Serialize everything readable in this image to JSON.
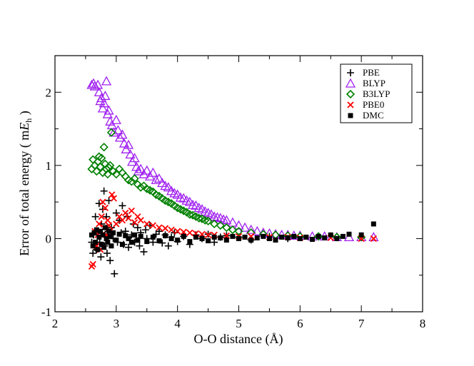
{
  "chart_data": {
    "type": "scatter",
    "xlabel": "O-O distance (Å)",
    "ylabel_text": "Error of total energy ( m",
    "ylabel_italic": "E",
    "ylabel_sub": "h",
    "ylabel_close": " )",
    "xlim": [
      2,
      8
    ],
    "ylim": [
      -1,
      2.5
    ],
    "xticks": [
      2,
      3,
      4,
      5,
      6,
      7,
      8
    ],
    "yticks": [
      -1,
      0,
      1,
      2
    ],
    "grid": false,
    "legend_position": "top-right",
    "series": [
      {
        "name": "PBE",
        "marker": "plus",
        "color": "#000000",
        "points": [
          [
            2.6,
            -0.05
          ],
          [
            2.62,
            -0.2
          ],
          [
            2.63,
            0.05
          ],
          [
            2.65,
            -0.12
          ],
          [
            2.66,
            0.3
          ],
          [
            2.68,
            -0.15
          ],
          [
            2.7,
            0.1
          ],
          [
            2.72,
            0.48
          ],
          [
            2.73,
            -0.05
          ],
          [
            2.75,
            -0.25
          ],
          [
            2.76,
            0.2
          ],
          [
            2.78,
            0.4
          ],
          [
            2.8,
            0.65
          ],
          [
            2.81,
            -0.1
          ],
          [
            2.82,
            0.05
          ],
          [
            2.84,
            0.3
          ],
          [
            2.85,
            -0.2
          ],
          [
            2.87,
            0.1
          ],
          [
            2.88,
            0.52
          ],
          [
            2.9,
            -0.3
          ],
          [
            2.92,
            0.15
          ],
          [
            2.95,
            0.0
          ],
          [
            2.97,
            -0.48
          ],
          [
            3.0,
            0.35
          ],
          [
            3.02,
            -0.05
          ],
          [
            3.05,
            0.25
          ],
          [
            3.08,
            0.08
          ],
          [
            3.1,
            0.45
          ],
          [
            3.12,
            -0.08
          ],
          [
            3.15,
            0.1
          ],
          [
            3.18,
            0.3
          ],
          [
            3.2,
            -0.12
          ],
          [
            3.25,
            0.05
          ],
          [
            3.28,
            0.2
          ],
          [
            3.3,
            -0.05
          ],
          [
            3.35,
            0.15
          ],
          [
            3.38,
            -0.1
          ],
          [
            3.4,
            0.08
          ],
          [
            3.45,
            -0.18
          ],
          [
            3.48,
            0.12
          ],
          [
            3.5,
            0.0
          ],
          [
            3.55,
            0.18
          ],
          [
            3.6,
            -0.05
          ],
          [
            3.65,
            0.06
          ],
          [
            3.7,
            0.1
          ],
          [
            3.75,
            -0.06
          ],
          [
            3.8,
            0.05
          ],
          [
            3.85,
            -0.1
          ],
          [
            3.9,
            0.02
          ],
          [
            3.95,
            0.08
          ],
          [
            4.0,
            -0.04
          ],
          [
            4.1,
            0.03
          ],
          [
            4.2,
            -0.08
          ],
          [
            4.3,
            0.05
          ],
          [
            4.4,
            0.0
          ],
          [
            4.5,
            0.06
          ],
          [
            4.6,
            -0.05
          ],
          [
            4.7,
            0.02
          ],
          [
            4.8,
            0.04
          ],
          [
            5.0,
            0.02
          ],
          [
            5.2,
            -0.02
          ],
          [
            5.5,
            0.03
          ],
          [
            5.8,
            0.0
          ]
        ]
      },
      {
        "name": "BLYP",
        "marker": "triangle",
        "color": "#a020f0",
        "points": [
          [
            2.6,
            2.1
          ],
          [
            2.63,
            2.12
          ],
          [
            2.65,
            2.08
          ],
          [
            2.7,
            2.1
          ],
          [
            2.72,
            2.0
          ],
          [
            2.74,
            1.88
          ],
          [
            2.76,
            1.92
          ],
          [
            2.78,
            1.78
          ],
          [
            2.8,
            1.85
          ],
          [
            2.82,
            1.95
          ],
          [
            2.84,
            2.15
          ],
          [
            2.86,
            1.7
          ],
          [
            2.88,
            1.75
          ],
          [
            2.9,
            1.6
          ],
          [
            2.93,
            1.55
          ],
          [
            2.96,
            1.45
          ],
          [
            3.0,
            1.62
          ],
          [
            3.03,
            1.48
          ],
          [
            3.06,
            1.38
          ],
          [
            3.1,
            1.42
          ],
          [
            3.13,
            1.3
          ],
          [
            3.16,
            1.22
          ],
          [
            3.2,
            1.28
          ],
          [
            3.23,
            1.15
          ],
          [
            3.26,
            1.05
          ],
          [
            3.3,
            1.1
          ],
          [
            3.33,
            0.98
          ],
          [
            3.36,
            0.92
          ],
          [
            3.4,
            0.95
          ],
          [
            3.45,
            0.88
          ],
          [
            3.5,
            0.93
          ],
          [
            3.55,
            0.85
          ],
          [
            3.6,
            0.9
          ],
          [
            3.65,
            0.8
          ],
          [
            3.7,
            0.82
          ],
          [
            3.75,
            0.76
          ],
          [
            3.8,
            0.72
          ],
          [
            3.85,
            0.7
          ],
          [
            3.9,
            0.65
          ],
          [
            3.95,
            0.62
          ],
          [
            4.0,
            0.6
          ],
          [
            4.05,
            0.56
          ],
          [
            4.1,
            0.55
          ],
          [
            4.15,
            0.52
          ],
          [
            4.2,
            0.5
          ],
          [
            4.25,
            0.46
          ],
          [
            4.3,
            0.45
          ],
          [
            4.35,
            0.42
          ],
          [
            4.4,
            0.4
          ],
          [
            4.45,
            0.37
          ],
          [
            4.5,
            0.35
          ],
          [
            4.55,
            0.33
          ],
          [
            4.6,
            0.3
          ],
          [
            4.65,
            0.29
          ],
          [
            4.7,
            0.28
          ],
          [
            4.75,
            0.26
          ],
          [
            4.8,
            0.25
          ],
          [
            4.9,
            0.22
          ],
          [
            5.0,
            0.18
          ],
          [
            5.1,
            0.15
          ],
          [
            5.2,
            0.12
          ],
          [
            5.3,
            0.1
          ],
          [
            5.4,
            0.08
          ],
          [
            5.5,
            0.07
          ],
          [
            5.6,
            0.06
          ],
          [
            5.7,
            0.05
          ],
          [
            5.8,
            0.05
          ],
          [
            5.9,
            0.04
          ],
          [
            6.0,
            0.04
          ],
          [
            6.2,
            0.03
          ],
          [
            6.4,
            0.03
          ],
          [
            6.6,
            0.02
          ],
          [
            6.8,
            0.02
          ],
          [
            7.0,
            0.02
          ],
          [
            7.2,
            0.02
          ]
        ]
      },
      {
        "name": "B3LYP",
        "marker": "diamond",
        "color": "#008000",
        "points": [
          [
            2.6,
            0.95
          ],
          [
            2.62,
            1.08
          ],
          [
            2.65,
            1.0
          ],
          [
            2.68,
            0.92
          ],
          [
            2.7,
            1.05
          ],
          [
            2.72,
            1.12
          ],
          [
            2.74,
            0.98
          ],
          [
            2.76,
            1.1
          ],
          [
            2.78,
            0.9
          ],
          [
            2.8,
            1.25
          ],
          [
            2.82,
            1.02
          ],
          [
            2.84,
            0.95
          ],
          [
            2.86,
            0.88
          ],
          [
            2.88,
            0.97
          ],
          [
            2.9,
            1.0
          ],
          [
            2.92,
            1.45
          ],
          [
            2.95,
            0.92
          ],
          [
            3.0,
            0.88
          ],
          [
            3.05,
            0.95
          ],
          [
            3.1,
            0.9
          ],
          [
            3.15,
            0.85
          ],
          [
            3.2,
            0.8
          ],
          [
            3.25,
            0.78
          ],
          [
            3.3,
            0.82
          ],
          [
            3.35,
            0.74
          ],
          [
            3.4,
            0.7
          ],
          [
            3.45,
            0.72
          ],
          [
            3.5,
            0.68
          ],
          [
            3.55,
            0.66
          ],
          [
            3.6,
            0.64
          ],
          [
            3.65,
            0.6
          ],
          [
            3.7,
            0.58
          ],
          [
            3.75,
            0.55
          ],
          [
            3.8,
            0.52
          ],
          [
            3.85,
            0.5
          ],
          [
            3.9,
            0.48
          ],
          [
            3.95,
            0.45
          ],
          [
            4.0,
            0.42
          ],
          [
            4.05,
            0.4
          ],
          [
            4.1,
            0.38
          ],
          [
            4.15,
            0.36
          ],
          [
            4.2,
            0.33
          ],
          [
            4.25,
            0.32
          ],
          [
            4.3,
            0.3
          ],
          [
            4.35,
            0.28
          ],
          [
            4.4,
            0.27
          ],
          [
            4.45,
            0.25
          ],
          [
            4.5,
            0.24
          ],
          [
            4.6,
            0.2
          ],
          [
            4.7,
            0.18
          ],
          [
            4.8,
            0.15
          ],
          [
            4.9,
            0.12
          ],
          [
            5.0,
            0.1
          ],
          [
            5.2,
            0.08
          ],
          [
            5.4,
            0.06
          ],
          [
            5.6,
            0.05
          ],
          [
            5.8,
            0.04
          ],
          [
            6.0,
            0.03
          ],
          [
            6.3,
            0.03
          ],
          [
            6.6,
            0.02
          ],
          [
            7.0,
            0.02
          ]
        ]
      },
      {
        "name": "PBE0",
        "marker": "x",
        "color": "#ff0000",
        "points": [
          [
            2.6,
            -0.38
          ],
          [
            2.62,
            -0.35
          ],
          [
            2.65,
            0.1
          ],
          [
            2.68,
            -0.1
          ],
          [
            2.7,
            0.05
          ],
          [
            2.72,
            0.2
          ],
          [
            2.74,
            -0.15
          ],
          [
            2.76,
            0.3
          ],
          [
            2.78,
            0.5
          ],
          [
            2.8,
            0.15
          ],
          [
            2.82,
            0.42
          ],
          [
            2.84,
            0.05
          ],
          [
            2.86,
            0.25
          ],
          [
            2.88,
            0.18
          ],
          [
            2.9,
            0.1
          ],
          [
            2.93,
            0.6
          ],
          [
            2.96,
            0.55
          ],
          [
            3.0,
            0.2
          ],
          [
            3.05,
            0.3
          ],
          [
            3.1,
            0.25
          ],
          [
            3.15,
            0.35
          ],
          [
            3.2,
            0.28
          ],
          [
            3.25,
            0.38
          ],
          [
            3.3,
            0.22
          ],
          [
            3.35,
            0.3
          ],
          [
            3.4,
            0.25
          ],
          [
            3.5,
            0.2
          ],
          [
            3.6,
            0.18
          ],
          [
            3.7,
            0.15
          ],
          [
            3.8,
            0.14
          ],
          [
            3.9,
            0.12
          ],
          [
            4.0,
            0.1
          ],
          [
            4.1,
            0.09
          ],
          [
            4.2,
            0.08
          ],
          [
            4.3,
            0.07
          ],
          [
            4.4,
            0.06
          ],
          [
            4.5,
            0.05
          ],
          [
            4.6,
            0.05
          ],
          [
            4.8,
            0.04
          ],
          [
            5.0,
            0.03
          ],
          [
            5.2,
            0.03
          ],
          [
            5.5,
            0.02
          ],
          [
            5.8,
            0.02
          ],
          [
            6.0,
            0.01
          ],
          [
            6.5,
            0.01
          ],
          [
            7.0,
            0.0
          ],
          [
            7.2,
            0.0
          ]
        ]
      },
      {
        "name": "DMC",
        "marker": "square",
        "color": "#000000",
        "points": [
          [
            2.6,
            0.05
          ],
          [
            2.62,
            -0.1
          ],
          [
            2.64,
            0.08
          ],
          [
            2.66,
            -0.05
          ],
          [
            2.68,
            0.12
          ],
          [
            2.7,
            -0.15
          ],
          [
            2.72,
            0.02
          ],
          [
            2.74,
            0.1
          ],
          [
            2.76,
            -0.08
          ],
          [
            2.78,
            0.05
          ],
          [
            2.8,
            -0.12
          ],
          [
            2.82,
            0.15
          ],
          [
            2.84,
            0.0
          ],
          [
            2.86,
            -0.05
          ],
          [
            2.88,
            0.1
          ],
          [
            2.9,
            0.03
          ],
          [
            2.92,
            -0.1
          ],
          [
            2.95,
            0.08
          ],
          [
            3.0,
            -0.02
          ],
          [
            3.05,
            0.06
          ],
          [
            3.1,
            -0.08
          ],
          [
            3.15,
            0.04
          ],
          [
            3.2,
            0.0
          ],
          [
            3.25,
            -0.05
          ],
          [
            3.3,
            0.05
          ],
          [
            3.35,
            -0.02
          ],
          [
            3.4,
            0.03
          ],
          [
            3.5,
            -0.04
          ],
          [
            3.6,
            0.02
          ],
          [
            3.7,
            -0.03
          ],
          [
            3.8,
            0.04
          ],
          [
            3.9,
            0.0
          ],
          [
            4.0,
            -0.02
          ],
          [
            4.1,
            0.03
          ],
          [
            4.2,
            -0.04
          ],
          [
            4.3,
            0.02
          ],
          [
            4.4,
            0.0
          ],
          [
            4.5,
            -0.03
          ],
          [
            4.6,
            0.02
          ],
          [
            4.7,
            0.01
          ],
          [
            4.8,
            -0.02
          ],
          [
            4.9,
            0.03
          ],
          [
            5.0,
            0.0
          ],
          [
            5.1,
            0.02
          ],
          [
            5.2,
            -0.02
          ],
          [
            5.3,
            0.01
          ],
          [
            5.4,
            0.03
          ],
          [
            5.5,
            0.0
          ],
          [
            5.6,
            -0.02
          ],
          [
            5.7,
            0.02
          ],
          [
            5.8,
            0.01
          ],
          [
            5.9,
            0.03
          ],
          [
            6.0,
            0.0
          ],
          [
            6.1,
            0.02
          ],
          [
            6.2,
            -0.01
          ],
          [
            6.3,
            0.03
          ],
          [
            6.4,
            0.01
          ],
          [
            6.5,
            0.05
          ],
          [
            6.6,
            0.0
          ],
          [
            6.7,
            0.03
          ],
          [
            6.8,
            0.06
          ],
          [
            7.0,
            0.05
          ],
          [
            7.2,
            0.2
          ]
        ]
      }
    ]
  }
}
